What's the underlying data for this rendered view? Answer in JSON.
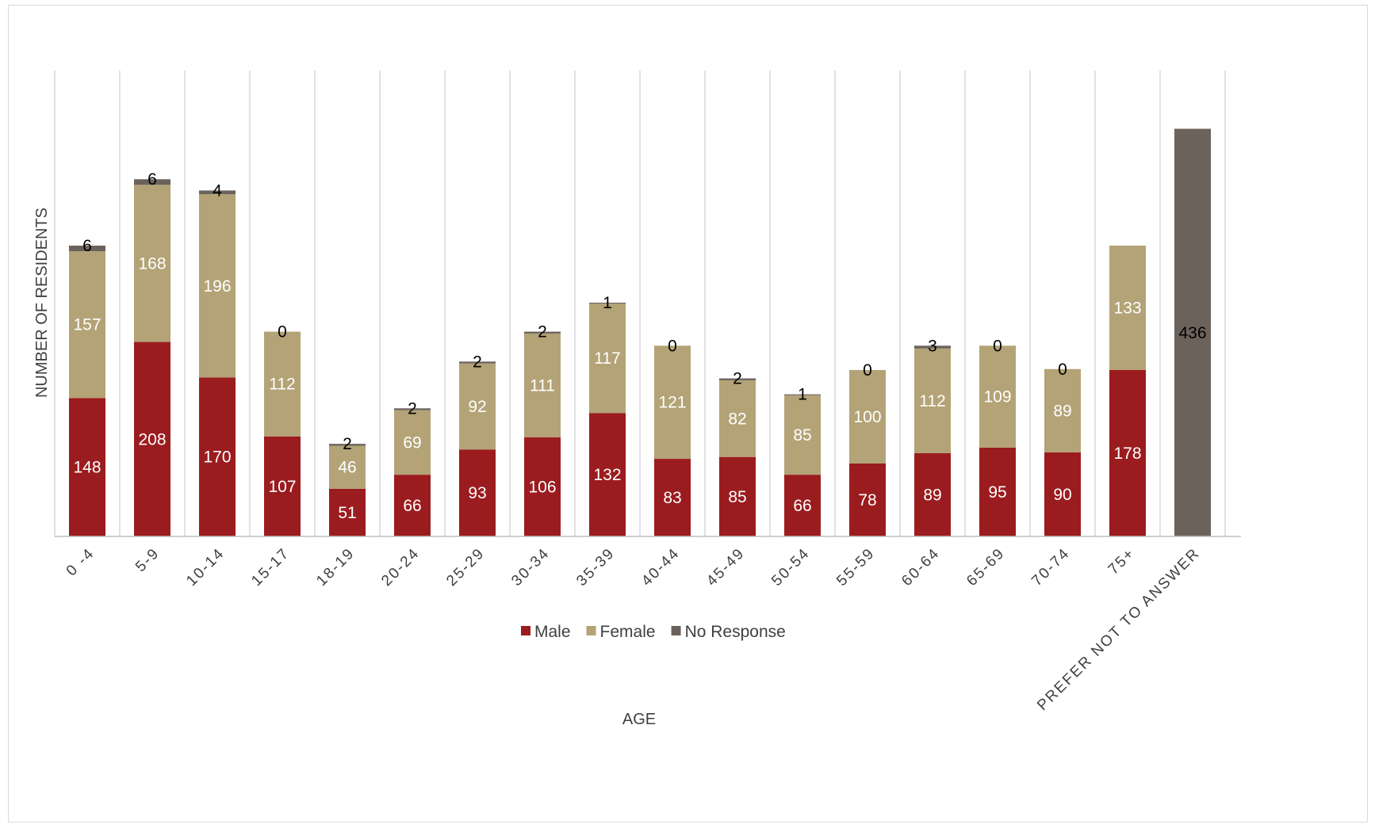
{
  "chart_data": {
    "type": "bar",
    "stacked": true,
    "title": "",
    "xlabel": "AGE",
    "ylabel": "NUMBER OF RESIDENTS",
    "ylim": [
      0,
      480
    ],
    "grid": "vertical",
    "legend_position": "bottom",
    "categories": [
      "0 -4",
      "5-9",
      "10-14",
      "15-17",
      "18-19",
      "20-24",
      "25-29",
      "30-34",
      "35-39",
      "40-44",
      "45-49",
      "50-54",
      "55-59",
      "60-64",
      "65-69",
      "70-74",
      "75+",
      "PREFER NOT TO ANSWER"
    ],
    "series": [
      {
        "name": "Male",
        "color": "#9b1c1f",
        "label_color": "#ffffff",
        "values": [
          148,
          208,
          170,
          107,
          51,
          66,
          93,
          106,
          132,
          83,
          85,
          66,
          78,
          89,
          95,
          90,
          178,
          null
        ]
      },
      {
        "name": "Female",
        "color": "#b3a376",
        "label_color": "#ffffff",
        "values": [
          157,
          168,
          196,
          112,
          46,
          69,
          92,
          111,
          117,
          121,
          82,
          85,
          100,
          112,
          109,
          89,
          133,
          null
        ]
      },
      {
        "name": "No Response",
        "color": "#6b625c",
        "label_color": "#000000",
        "values": [
          6,
          6,
          4,
          0,
          2,
          2,
          2,
          2,
          1,
          0,
          2,
          1,
          0,
          3,
          0,
          0,
          null,
          436
        ]
      }
    ]
  }
}
